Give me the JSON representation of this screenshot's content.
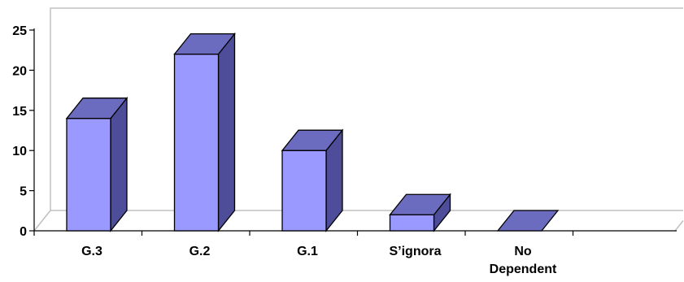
{
  "chart_data": {
    "type": "bar",
    "style": "3d-column",
    "categories": [
      "G.3",
      "G.2",
      "G.1",
      "S’ignora",
      "No Dependent"
    ],
    "category_label_lines": [
      [
        "G.3"
      ],
      [
        "G.2"
      ],
      [
        "G.1"
      ],
      [
        "S’ignora"
      ],
      [
        "No",
        "Dependent"
      ]
    ],
    "values": [
      14,
      22,
      10,
      2,
      0
    ],
    "yticks": [
      "0",
      "5",
      "10",
      "15",
      "20",
      "25"
    ],
    "ylim": [
      0,
      25
    ],
    "title": "",
    "xlabel": "",
    "ylabel": "",
    "grid": false,
    "legend": "none",
    "colors": {
      "bar_front": "#9999ff",
      "bar_side": "#4d4d99",
      "bar_top": "#6b6bbf",
      "outline": "#000000",
      "wall": "#c0c0c0"
    }
  }
}
